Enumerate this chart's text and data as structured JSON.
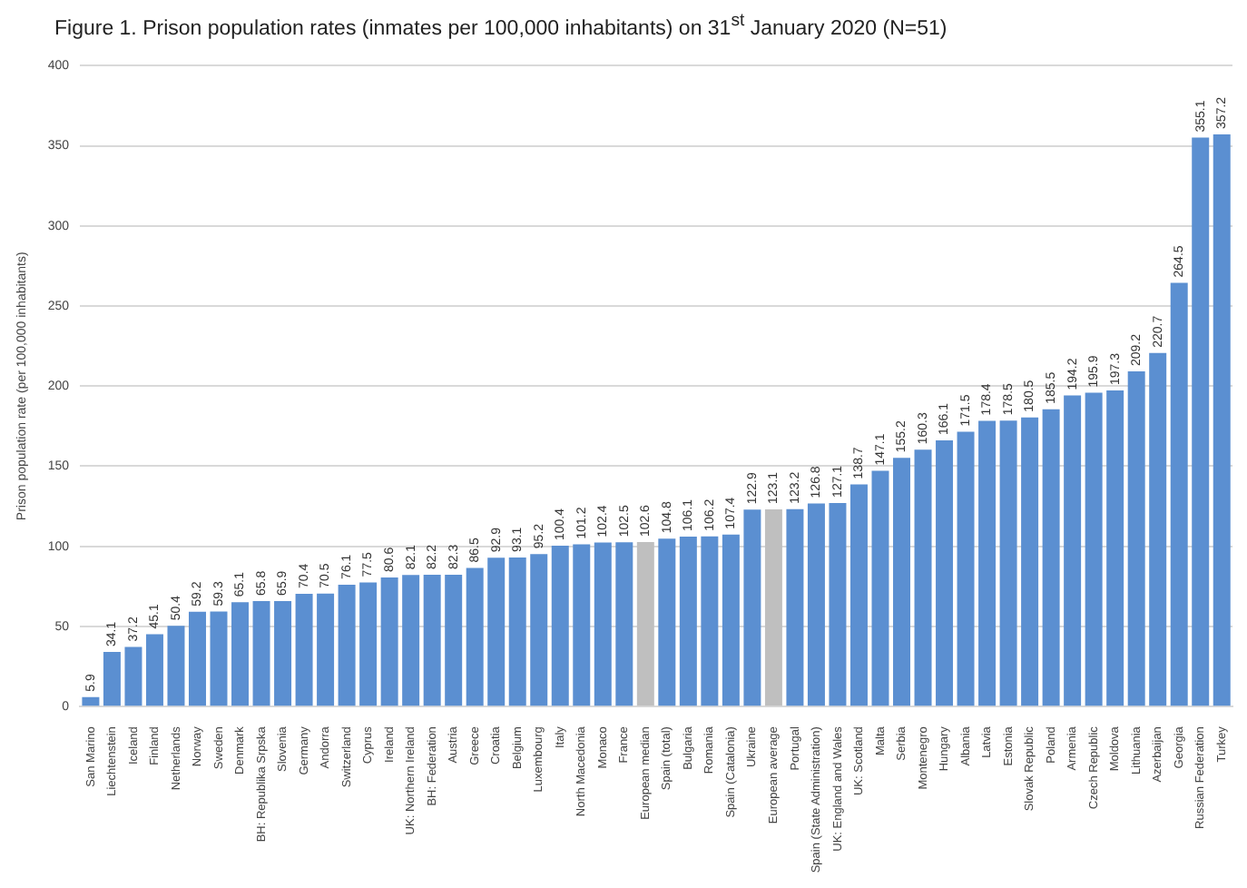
{
  "chart_data": {
    "type": "bar",
    "title": "Figure 1. Prison population rates (inmates per 100,000 inhabitants) on 31$^{st}$ January 2020 (N=51)",
    "ylabel": "Prison population rate (per 100,000 inhabitants)",
    "categories": [
      "San Marino",
      "Liechtenstein",
      "Iceland",
      "Finland",
      "Netherlands",
      "Norway",
      "Sweden",
      "Denmark",
      "BH: Republika Srpska",
      "Slovenia",
      "Germany",
      "Andorra",
      "Switzerland",
      "Cyprus",
      "Ireland",
      "UK: Northern Ireland",
      "BH: Federation",
      "Austria",
      "Greece",
      "Croatia",
      "Belgium",
      "Luxembourg",
      "Italy",
      "North Macedonia",
      "Monaco",
      "France",
      "European median",
      "Spain (total)",
      "Bulgaria",
      "Romania",
      "Spain (Catalonia)",
      "Ukraine",
      "European average",
      "Portugal",
      "Spain (State Administration)",
      "UK: England and Wales",
      "UK: Scotland",
      "Malta",
      "Serbia",
      "Montenegro",
      "Hungary",
      "Albania",
      "Latvia",
      "Estonia",
      "Slovak Republic",
      "Poland",
      "Armenia",
      "Czech Republic",
      "Moldova",
      "Lithuania",
      "Azerbaijan",
      "Georgia",
      "Russian Federation",
      "Turkey"
    ],
    "values": [
      5.9,
      34.1,
      37.2,
      45.1,
      50.4,
      59.2,
      59.3,
      65.1,
      65.8,
      65.9,
      70.4,
      70.5,
      76.1,
      77.5,
      80.6,
      82.1,
      82.2,
      82.3,
      86.5,
      92.9,
      93.1,
      95.2,
      100.4,
      101.2,
      102.4,
      102.5,
      102.6,
      104.8,
      106.1,
      106.2,
      107.4,
      122.9,
      123.1,
      123.2,
      126.8,
      127.1,
      138.7,
      147.1,
      155.2,
      160.3,
      166.1,
      171.5,
      178.4,
      178.5,
      180.5,
      185.5,
      194.2,
      195.9,
      197.3,
      209.2,
      220.7,
      264.5,
      355.1,
      357.2
    ],
    "colors": [
      "#5b8fd1",
      "#5b8fd1",
      "#5b8fd1",
      "#5b8fd1",
      "#5b8fd1",
      "#5b8fd1",
      "#5b8fd1",
      "#5b8fd1",
      "#5b8fd1",
      "#5b8fd1",
      "#5b8fd1",
      "#5b8fd1",
      "#5b8fd1",
      "#5b8fd1",
      "#5b8fd1",
      "#5b8fd1",
      "#5b8fd1",
      "#5b8fd1",
      "#5b8fd1",
      "#5b8fd1",
      "#5b8fd1",
      "#5b8fd1",
      "#5b8fd1",
      "#5b8fd1",
      "#5b8fd1",
      "#5b8fd1",
      "#bfbfbf",
      "#5b8fd1",
      "#5b8fd1",
      "#5b8fd1",
      "#5b8fd1",
      "#5b8fd1",
      "#bfbfbf",
      "#5b8fd1",
      "#5b8fd1",
      "#5b8fd1",
      "#5b8fd1",
      "#5b8fd1",
      "#5b8fd1",
      "#5b8fd1",
      "#5b8fd1",
      "#5b8fd1",
      "#5b8fd1",
      "#5b8fd1",
      "#5b8fd1",
      "#5b8fd1",
      "#5b8fd1",
      "#5b8fd1",
      "#5b8fd1",
      "#5b8fd1",
      "#5b8fd1",
      "#5b8fd1",
      "#5b8fd1",
      "#5b8fd1"
    ],
    "ylim": [
      0,
      400
    ],
    "yticks": [
      0,
      50,
      100,
      150,
      200,
      250,
      300,
      350,
      400
    ],
    "grid": "y",
    "legend": false,
    "data_labels": true
  }
}
